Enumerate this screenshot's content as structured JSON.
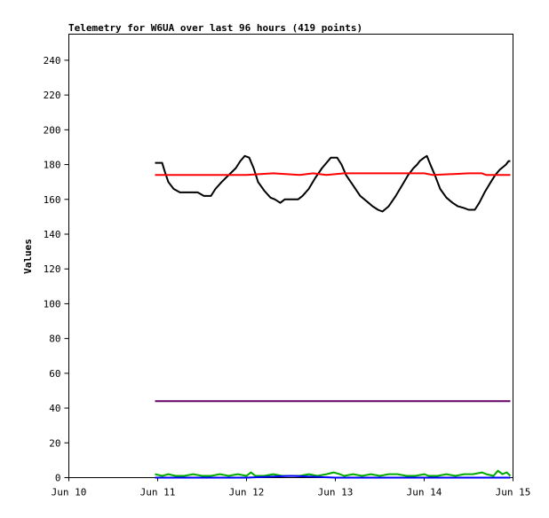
{
  "chart_data": {
    "type": "line",
    "title": "Telemetry for W6UA over last 96 hours (419 points)",
    "xlabel": "",
    "ylabel": "Values",
    "ylim": [
      0,
      255
    ],
    "xlim": [
      0,
      5
    ],
    "x_ticks": [
      {
        "value": 0,
        "label": "Jun 10"
      },
      {
        "value": 1,
        "label": "Jun 11"
      },
      {
        "value": 2,
        "label": "Jun 12"
      },
      {
        "value": 3,
        "label": "Jun 13"
      },
      {
        "value": 4,
        "label": "Jun 14"
      },
      {
        "value": 5,
        "label": "Jun 15"
      }
    ],
    "y_ticks": [
      0,
      20,
      40,
      60,
      80,
      100,
      120,
      140,
      160,
      180,
      200,
      220,
      240
    ],
    "grid": false,
    "series": [
      {
        "color": "#000000",
        "points": [
          [
            0.97,
            181
          ],
          [
            1.05,
            181
          ],
          [
            1.08,
            176
          ],
          [
            1.12,
            170
          ],
          [
            1.18,
            166
          ],
          [
            1.25,
            164
          ],
          [
            1.35,
            164
          ],
          [
            1.45,
            164
          ],
          [
            1.52,
            162
          ],
          [
            1.6,
            162
          ],
          [
            1.65,
            166
          ],
          [
            1.72,
            170
          ],
          [
            1.8,
            174
          ],
          [
            1.88,
            178
          ],
          [
            1.93,
            182
          ],
          [
            1.98,
            185
          ],
          [
            2.03,
            184
          ],
          [
            2.08,
            178
          ],
          [
            2.13,
            170
          ],
          [
            2.2,
            165
          ],
          [
            2.27,
            161
          ],
          [
            2.32,
            160
          ],
          [
            2.38,
            158
          ],
          [
            2.43,
            160
          ],
          [
            2.5,
            160
          ],
          [
            2.58,
            160
          ],
          [
            2.63,
            162
          ],
          [
            2.7,
            166
          ],
          [
            2.77,
            172
          ],
          [
            2.85,
            178
          ],
          [
            2.9,
            181
          ],
          [
            2.95,
            184
          ],
          [
            3.02,
            184
          ],
          [
            3.07,
            180
          ],
          [
            3.12,
            174
          ],
          [
            3.2,
            168
          ],
          [
            3.28,
            162
          ],
          [
            3.35,
            159
          ],
          [
            3.42,
            156
          ],
          [
            3.48,
            154
          ],
          [
            3.53,
            153
          ],
          [
            3.6,
            156
          ],
          [
            3.68,
            162
          ],
          [
            3.75,
            168
          ],
          [
            3.82,
            174
          ],
          [
            3.88,
            178
          ],
          [
            3.92,
            180
          ],
          [
            3.95,
            182
          ],
          [
            4.0,
            184
          ],
          [
            4.03,
            185
          ],
          [
            4.07,
            180
          ],
          [
            4.12,
            174
          ],
          [
            4.18,
            166
          ],
          [
            4.25,
            161
          ],
          [
            4.32,
            158
          ],
          [
            4.38,
            156
          ],
          [
            4.45,
            155
          ],
          [
            4.5,
            154
          ],
          [
            4.57,
            154
          ],
          [
            4.62,
            158
          ],
          [
            4.68,
            164
          ],
          [
            4.75,
            170
          ],
          [
            4.8,
            174
          ],
          [
            4.85,
            177
          ],
          [
            4.92,
            180
          ],
          [
            4.95,
            182
          ],
          [
            4.97,
            182
          ]
        ]
      },
      {
        "color": "#ff0000",
        "points": [
          [
            0.97,
            174
          ],
          [
            1.5,
            174
          ],
          [
            2.0,
            174
          ],
          [
            2.3,
            175
          ],
          [
            2.6,
            174
          ],
          [
            2.75,
            175
          ],
          [
            2.9,
            174
          ],
          [
            3.1,
            175
          ],
          [
            3.5,
            175
          ],
          [
            4.0,
            175
          ],
          [
            4.1,
            174
          ],
          [
            4.5,
            175
          ],
          [
            4.65,
            175
          ],
          [
            4.7,
            174
          ],
          [
            4.97,
            174
          ]
        ]
      },
      {
        "color": "#660066",
        "points": [
          [
            0.97,
            44
          ],
          [
            4.97,
            44
          ]
        ]
      },
      {
        "color": "#00aa00",
        "points": [
          [
            0.97,
            2
          ],
          [
            1.05,
            1
          ],
          [
            1.12,
            2
          ],
          [
            1.2,
            1
          ],
          [
            1.3,
            1
          ],
          [
            1.4,
            2
          ],
          [
            1.5,
            1
          ],
          [
            1.6,
            1
          ],
          [
            1.7,
            2
          ],
          [
            1.8,
            1
          ],
          [
            1.9,
            2
          ],
          [
            2.0,
            1
          ],
          [
            2.05,
            3
          ],
          [
            2.1,
            1
          ],
          [
            2.2,
            1
          ],
          [
            2.3,
            2
          ],
          [
            2.4,
            1
          ],
          [
            2.5,
            1
          ],
          [
            2.6,
            1
          ],
          [
            2.7,
            2
          ],
          [
            2.8,
            1
          ],
          [
            2.9,
            2
          ],
          [
            2.98,
            3
          ],
          [
            3.05,
            2
          ],
          [
            3.1,
            1
          ],
          [
            3.2,
            2
          ],
          [
            3.3,
            1
          ],
          [
            3.4,
            2
          ],
          [
            3.5,
            1
          ],
          [
            3.6,
            2
          ],
          [
            3.7,
            2
          ],
          [
            3.8,
            1
          ],
          [
            3.9,
            1
          ],
          [
            4.0,
            2
          ],
          [
            4.05,
            1
          ],
          [
            4.15,
            1
          ],
          [
            4.25,
            2
          ],
          [
            4.35,
            1
          ],
          [
            4.45,
            2
          ],
          [
            4.55,
            2
          ],
          [
            4.65,
            3
          ],
          [
            4.7,
            2
          ],
          [
            4.78,
            1
          ],
          [
            4.83,
            4
          ],
          [
            4.88,
            2
          ],
          [
            4.93,
            3
          ],
          [
            4.97,
            1
          ]
        ]
      },
      {
        "color": "#0000ff",
        "points": [
          [
            0.97,
            0
          ],
          [
            1.5,
            0
          ],
          [
            2.0,
            0
          ],
          [
            2.5,
            1
          ],
          [
            3.0,
            0
          ],
          [
            3.5,
            0
          ],
          [
            4.0,
            0
          ],
          [
            4.5,
            0
          ],
          [
            4.97,
            0
          ]
        ]
      }
    ]
  }
}
